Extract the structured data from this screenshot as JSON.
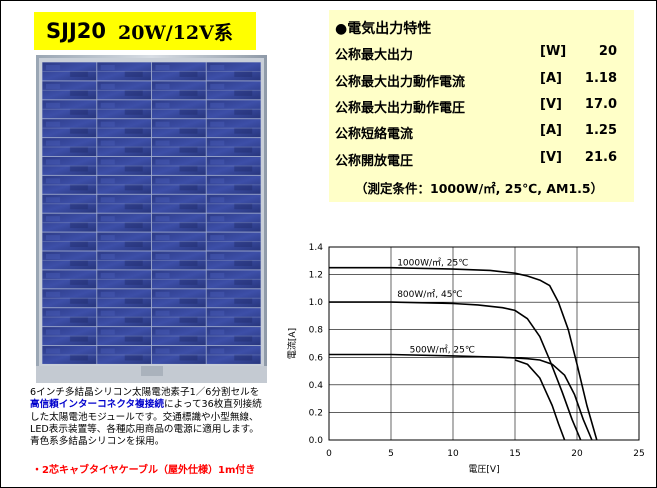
{
  "title": {
    "model": "SJJ20",
    "spec": "20W/12V系",
    "background": "#ffff00"
  },
  "specs": {
    "header": "●電気出力特性",
    "rows": [
      {
        "label": "公称最大出力",
        "unit": "[W]",
        "value": "20"
      },
      {
        "label": "公称最大出力動作電流",
        "unit": "[A]",
        "value": "1.18"
      },
      {
        "label": "公称最大出力動作電圧",
        "unit": "[V]",
        "value": "17.0"
      },
      {
        "label": "公称短絡電流",
        "unit": "[A]",
        "value": "1.25"
      },
      {
        "label": "公称開放電圧",
        "unit": "[V]",
        "value": "21.6"
      }
    ],
    "condition": "（測定条件：1000W/㎡, 25℃, AM1.5）",
    "background": "#ffffc8"
  },
  "description": {
    "line1": "6インチ多結晶シリコン太陽電池素子1／6分割セルを",
    "line2_highlight": "高信頼インターコネクタ複接続",
    "line2_rest": "によって36枚直列接続",
    "line3": "した太陽電池モジュールです。交通標識や小型無線、",
    "line4": "LED表示装置等、各種応用商品の電源に適用します。",
    "line5": "青色系多結晶シリコンを採用。",
    "cable_note": "・2芯キャブタイヤケーブル（屋外仕様）1m付き",
    "highlight_color": "#0000cc",
    "note_color": "#ff0000"
  },
  "chart_data": {
    "type": "line",
    "xlabel": "電圧[V]",
    "ylabel": "電流[A]",
    "xlim": [
      0,
      25
    ],
    "ylim": [
      0,
      1.4
    ],
    "xticks": [
      "0",
      "5",
      "10",
      "15",
      "20",
      "25"
    ],
    "yticks": [
      "0.0",
      "0.2",
      "0.4",
      "0.6",
      "0.8",
      "1.0",
      "1.2",
      "1.4"
    ],
    "grid": true,
    "series": [
      {
        "name": "1000W/㎡, 25℃",
        "x": [
          0,
          5,
          10,
          13,
          15,
          16,
          17,
          17.8,
          18.5,
          19.3,
          20,
          20.8,
          21.6
        ],
        "y": [
          1.25,
          1.25,
          1.24,
          1.23,
          1.21,
          1.19,
          1.16,
          1.12,
          1.0,
          0.8,
          0.55,
          0.25,
          0
        ]
      },
      {
        "name": "800W/㎡, 45℃",
        "x": [
          0,
          5,
          10,
          12,
          14,
          15,
          16,
          17,
          17.8,
          18.8,
          19.6,
          20.3
        ],
        "y": [
          1.0,
          1.0,
          0.99,
          0.98,
          0.96,
          0.94,
          0.88,
          0.75,
          0.58,
          0.35,
          0.15,
          0
        ]
      },
      {
        "name": "500W/㎡, 25℃",
        "x": [
          0,
          5,
          10,
          14,
          16,
          17,
          18,
          19,
          19.8,
          20.5,
          21.2
        ],
        "y": [
          0.62,
          0.62,
          0.61,
          0.6,
          0.59,
          0.58,
          0.55,
          0.47,
          0.33,
          0.15,
          0
        ]
      }
    ],
    "extra_curves": [
      {
        "x": [
          15,
          16,
          17,
          17.5,
          18,
          18.5,
          19
        ],
        "y": [
          0.58,
          0.55,
          0.45,
          0.35,
          0.25,
          0.12,
          0
        ]
      }
    ]
  }
}
